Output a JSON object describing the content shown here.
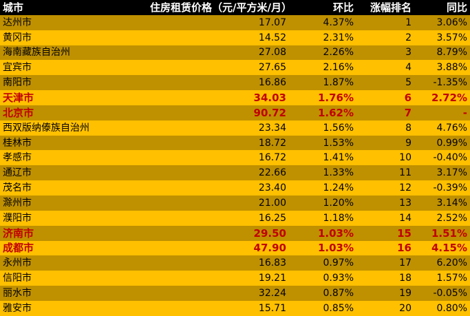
{
  "colors": {
    "header_bg": "#000000",
    "header_text": "#ffffff",
    "row_dark": "#bf9000",
    "row_light": "#ffc000",
    "highlight_text": "#c00000"
  },
  "header": {
    "city": "城市",
    "price": "住房租赁价格（元/平方米/月）",
    "mom": "环比",
    "rank": "涨幅排名",
    "yoy": "同比"
  },
  "rows": [
    {
      "city": "达州市",
      "price": "17.07",
      "mom": "4.37%",
      "rank": "1",
      "yoy": "3.06%",
      "highlight": false
    },
    {
      "city": "黄冈市",
      "price": "14.52",
      "mom": "2.31%",
      "rank": "2",
      "yoy": "3.57%",
      "highlight": false
    },
    {
      "city": "海南藏族自治州",
      "price": "27.08",
      "mom": "2.26%",
      "rank": "3",
      "yoy": "8.79%",
      "highlight": false
    },
    {
      "city": "宜宾市",
      "price": "27.65",
      "mom": "2.16%",
      "rank": "4",
      "yoy": "3.88%",
      "highlight": false
    },
    {
      "city": "南阳市",
      "price": "16.86",
      "mom": "1.87%",
      "rank": "5",
      "yoy": "-1.35%",
      "highlight": false
    },
    {
      "city": "天津市",
      "price": "34.03",
      "mom": "1.76%",
      "rank": "6",
      "yoy": "2.72%",
      "highlight": true
    },
    {
      "city": "北京市",
      "price": "90.72",
      "mom": "1.62%",
      "rank": "7",
      "yoy": "-",
      "highlight": true
    },
    {
      "city": "西双版纳傣族自治州",
      "price": "23.34",
      "mom": "1.56%",
      "rank": "8",
      "yoy": "4.76%",
      "highlight": false
    },
    {
      "city": "桂林市",
      "price": "18.72",
      "mom": "1.53%",
      "rank": "9",
      "yoy": "0.99%",
      "highlight": false
    },
    {
      "city": "孝感市",
      "price": "16.72",
      "mom": "1.41%",
      "rank": "10",
      "yoy": "-0.40%",
      "highlight": false
    },
    {
      "city": "通辽市",
      "price": "22.66",
      "mom": "1.33%",
      "rank": "11",
      "yoy": "3.17%",
      "highlight": false
    },
    {
      "city": "茂名市",
      "price": "23.40",
      "mom": "1.24%",
      "rank": "12",
      "yoy": "-0.39%",
      "highlight": false
    },
    {
      "city": "滁州市",
      "price": "21.00",
      "mom": "1.20%",
      "rank": "13",
      "yoy": "3.14%",
      "highlight": false
    },
    {
      "city": "濮阳市",
      "price": "16.25",
      "mom": "1.18%",
      "rank": "14",
      "yoy": "2.52%",
      "highlight": false
    },
    {
      "city": "济南市",
      "price": "29.50",
      "mom": "1.03%",
      "rank": "15",
      "yoy": "1.51%",
      "highlight": true
    },
    {
      "city": "成都市",
      "price": "47.90",
      "mom": "1.03%",
      "rank": "16",
      "yoy": "4.15%",
      "highlight": true
    },
    {
      "city": "永州市",
      "price": "16.83",
      "mom": "0.97%",
      "rank": "17",
      "yoy": "6.20%",
      "highlight": false
    },
    {
      "city": "信阳市",
      "price": "19.21",
      "mom": "0.93%",
      "rank": "18",
      "yoy": "1.57%",
      "highlight": false
    },
    {
      "city": "丽水市",
      "price": "32.24",
      "mom": "0.87%",
      "rank": "19",
      "yoy": "-0.05%",
      "highlight": false
    },
    {
      "city": "雅安市",
      "price": "15.71",
      "mom": "0.85%",
      "rank": "20",
      "yoy": "0.80%",
      "highlight": false
    }
  ]
}
